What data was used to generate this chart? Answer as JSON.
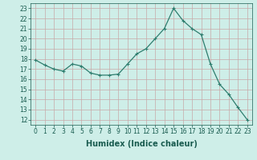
{
  "x": [
    0,
    1,
    2,
    3,
    4,
    5,
    6,
    7,
    8,
    9,
    10,
    11,
    12,
    13,
    14,
    15,
    16,
    17,
    18,
    19,
    20,
    21,
    22,
    23
  ],
  "y": [
    17.9,
    17.4,
    17.0,
    16.8,
    17.5,
    17.3,
    16.6,
    16.4,
    16.4,
    16.5,
    17.5,
    18.5,
    19.0,
    20.0,
    21.0,
    23.0,
    21.8,
    21.0,
    20.4,
    17.5,
    15.5,
    14.5,
    13.2,
    12.0
  ],
  "xlabel": "Humidex (Indice chaleur)",
  "ylim": [
    11.5,
    23.5
  ],
  "xlim": [
    -0.5,
    23.5
  ],
  "yticks": [
    12,
    13,
    14,
    15,
    16,
    17,
    18,
    19,
    20,
    21,
    22,
    23
  ],
  "xticks": [
    0,
    1,
    2,
    3,
    4,
    5,
    6,
    7,
    8,
    9,
    10,
    11,
    12,
    13,
    14,
    15,
    16,
    17,
    18,
    19,
    20,
    21,
    22,
    23
  ],
  "line_color": "#2e7d6e",
  "marker": "+",
  "bg_color": "#ceeee8",
  "grid_color_major": "#c8a8a8",
  "grid_color_minor": "#c8a8a8",
  "tick_label_fontsize": 5.5,
  "xlabel_fontsize": 7,
  "xlabel_color": "#1a5c50",
  "tick_color": "#1a5c50",
  "spine_color": "#1a5c50"
}
